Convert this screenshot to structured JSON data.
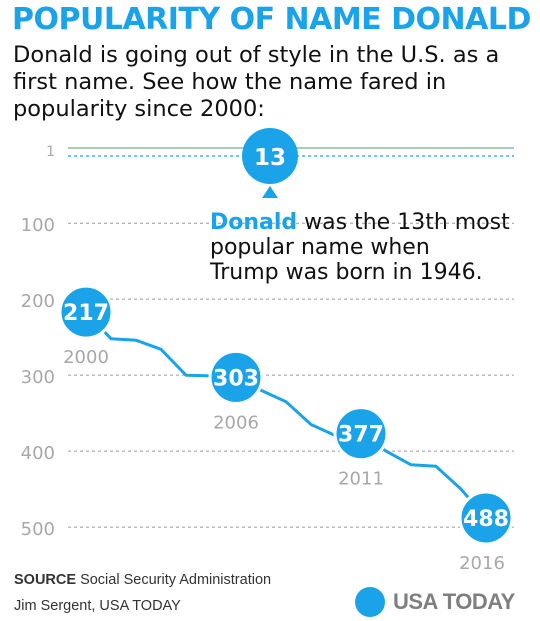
{
  "title": "POPULARITY OF NAME DONALD",
  "subtitle": "Donald is going out of style in the U.S. as a first name. See how the name fared in popularity since 2000:",
  "annotation": {
    "name": "Donald",
    "line1_rest": " was the 13th most",
    "line2": "popular name when",
    "line3": "Trump was born in 1946.",
    "badge": "13",
    "rank": 13
  },
  "chart_data": {
    "type": "line",
    "title": "POPULARITY OF NAME DONALD",
    "xlabel": "",
    "ylabel": "",
    "y_axis_reversed": true,
    "yticks": [
      "1",
      "100",
      "200",
      "300",
      "400",
      "500"
    ],
    "series": [
      {
        "x": [
          2000,
          2001,
          2002,
          2003,
          2004,
          2005,
          2006,
          2007,
          2008,
          2009,
          2010,
          2011,
          2012,
          2013,
          2014,
          2015,
          2016
        ],
        "y": [
          217,
          252,
          254,
          266,
          300,
          301,
          303,
          320,
          335,
          365,
          380,
          377,
          400,
          418,
          420,
          450,
          488
        ]
      }
    ],
    "labeled_points": [
      {
        "year": 2000,
        "rank": 217,
        "label": "217",
        "year_label": "2000"
      },
      {
        "year": 2006,
        "rank": 303,
        "label": "303",
        "year_label": "2006"
      },
      {
        "year": 2011,
        "rank": 377,
        "label": "377",
        "year_label": "2011"
      },
      {
        "year": 2016,
        "rank": 488,
        "label": "488",
        "year_label": "2016"
      }
    ],
    "colors": {
      "accent": "#1aa3e8",
      "grid": "#9a9a9a",
      "axis_text": "#a8a8a8",
      "top_line": "#8cbf9a"
    }
  },
  "source_label": "SOURCE",
  "source_text": " Social Security Administration",
  "credit": "Jim Sergent, USA TODAY",
  "logo_text": "USA TODAY"
}
